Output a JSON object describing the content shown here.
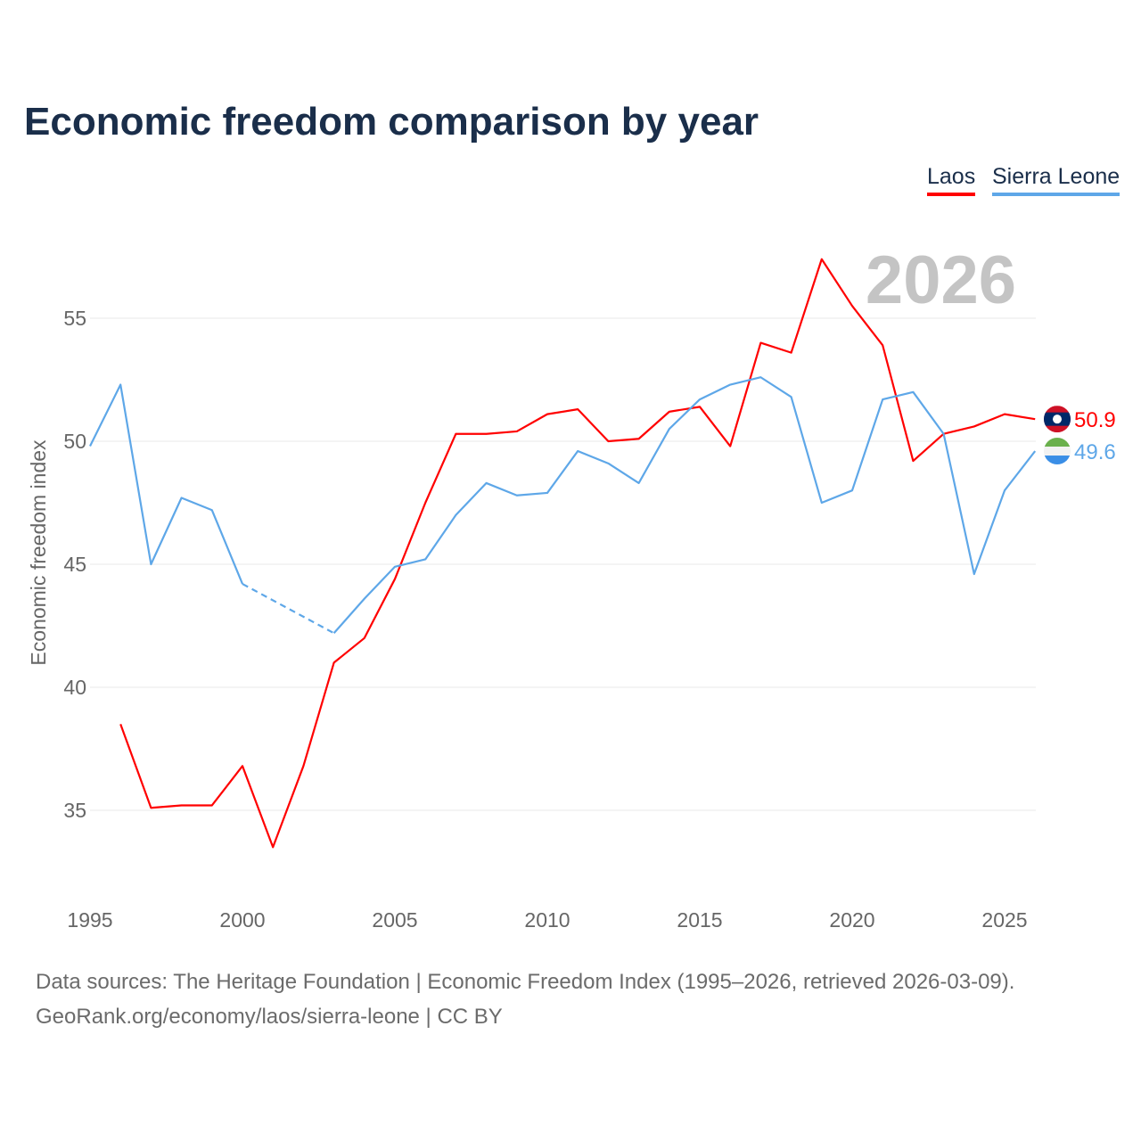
{
  "chart_data": {
    "type": "line",
    "title": "Economic freedom comparison by year",
    "ylabel": "Economic freedom index",
    "xlabel": "",
    "xlim": [
      1995,
      2026
    ],
    "ylim": [
      31.5,
      59
    ],
    "x_ticks": [
      1995,
      2000,
      2005,
      2010,
      2015,
      2020,
      2025
    ],
    "y_ticks": [
      35,
      40,
      45,
      50,
      55
    ],
    "grid": true,
    "legend_position": "top-right",
    "year_watermark": "2026",
    "x": [
      1995,
      1996,
      1997,
      1998,
      1999,
      2000,
      2001,
      2002,
      2003,
      2004,
      2005,
      2006,
      2007,
      2008,
      2009,
      2010,
      2011,
      2012,
      2013,
      2014,
      2015,
      2016,
      2017,
      2018,
      2019,
      2020,
      2021,
      2022,
      2023,
      2024,
      2025,
      2026
    ],
    "series": [
      {
        "name": "Laos",
        "color": "#ff0000",
        "end_label": "50.9",
        "values": [
          null,
          38.5,
          35.1,
          35.2,
          35.2,
          36.8,
          33.5,
          36.8,
          41.0,
          42.0,
          44.4,
          47.5,
          50.3,
          50.3,
          50.4,
          51.1,
          51.3,
          50.0,
          50.1,
          51.2,
          51.4,
          49.8,
          54.0,
          53.6,
          57.4,
          55.5,
          53.9,
          49.2,
          50.3,
          50.6,
          51.1,
          50.9
        ]
      },
      {
        "name": "Sierra Leone",
        "color": "#5ea7e8",
        "end_label": "49.6",
        "values": [
          49.8,
          52.3,
          45.0,
          47.7,
          47.2,
          44.2,
          null,
          null,
          42.2,
          43.6,
          44.9,
          45.2,
          47.0,
          48.3,
          47.8,
          47.9,
          49.6,
          49.1,
          48.3,
          50.5,
          51.7,
          52.3,
          52.6,
          51.8,
          47.5,
          48.0,
          51.7,
          52.0,
          50.3,
          44.6,
          48.0,
          49.6
        ]
      }
    ]
  },
  "sources": {
    "line1": "Data sources: The Heritage Foundation | Economic Freedom Index (1995–2026, retrieved 2026-03-09).",
    "line2": "GeoRank.org/economy/laos/sierra-leone | CC BY"
  }
}
